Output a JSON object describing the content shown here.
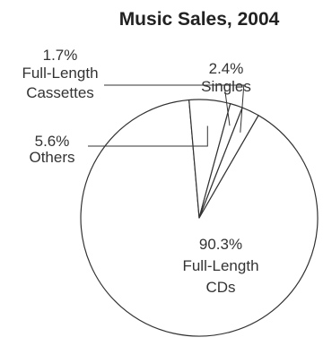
{
  "chart_data": {
    "type": "pie",
    "title": "Music Sales, 2004",
    "slices": [
      {
        "percent_label": "90.3%",
        "name_lines": [
          "Full-Length",
          "CDs"
        ],
        "value": 90.3
      },
      {
        "percent_label": "5.6%",
        "name_lines": [
          "Others"
        ],
        "value": 5.6
      },
      {
        "percent_label": "1.7%",
        "name_lines": [
          "Full-Length",
          "Cassettes"
        ],
        "value": 1.7
      },
      {
        "percent_label": "2.4%",
        "name_lines": [
          "Singles"
        ],
        "value": 2.4
      }
    ],
    "colors": {
      "fill": "#ffffff",
      "stroke": "#333333"
    }
  }
}
